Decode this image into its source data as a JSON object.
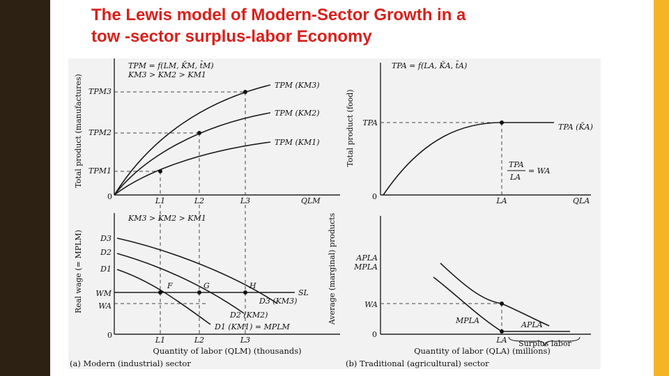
{
  "slide": {
    "title_line1": "The Lewis model of Modern-Sector Growth in a",
    "title_line2": "tow -sector surplus-labor Economy",
    "colors": {
      "left_band": "#2c2112",
      "right_band": "#f5b326",
      "title": "#d9201b"
    }
  },
  "figure": {
    "top_left": {
      "formula1": "TPM = f(LM, K̄M, t̄M)",
      "formula2": "KM3 > KM2 > KM1",
      "y_axis_label": "Total product (manufactures)",
      "y_ticks": [
        "TPM3",
        "TPM2",
        "TPM1"
      ],
      "x_ticks": [
        "L1",
        "L2",
        "L3"
      ],
      "x_axis_label": "QLM",
      "origin": "0",
      "curve_labels": [
        "TPM (KM3)",
        "TPM (KM2)",
        "TPM (KM1)"
      ]
    },
    "top_right": {
      "formula": "TPA = f(LA, K̄A, t̄A)",
      "y_axis_label": "Total product (food)",
      "y_tick": "TPA",
      "x_tick": "LA",
      "x_axis_label": "QLA",
      "origin": "0",
      "curve_label": "TPA (K̄A)",
      "ratio_numerator": "TPA",
      "ratio_denominator": "LA",
      "ratio_result": "= WA"
    },
    "bottom_left": {
      "formula": "KM3 > KM2 > KM1",
      "y_axis_label": "Real wage (= MPLM)",
      "y_ticks": [
        "D3",
        "D2",
        "D1",
        "WM",
        "WA"
      ],
      "x_ticks": [
        "L1",
        "L2",
        "L3"
      ],
      "origin": "0",
      "points": [
        "F",
        "G",
        "H"
      ],
      "supply_label": "SL",
      "demand_labels": [
        "D3 (KM3)",
        "D2 (KM2)",
        "D1 (KM1) = MPLM"
      ],
      "x_axis_label": "Quantity of labor (QLM) (thousands)",
      "caption": "(a) Modern (industrial) sector"
    },
    "bottom_right": {
      "y_axis_label": "Average (marginal) products",
      "y_ticks": [
        "APLA",
        "MPLA",
        "WA"
      ],
      "x_tick": "LA",
      "origin": "0",
      "curve_labels": [
        "MPLA",
        "APLA"
      ],
      "surplus_label": "Surplus labor",
      "x_axis_label": "Quantity of labor (QLA) (millions)",
      "caption": "(b) Traditional (agricultural) sector"
    }
  }
}
